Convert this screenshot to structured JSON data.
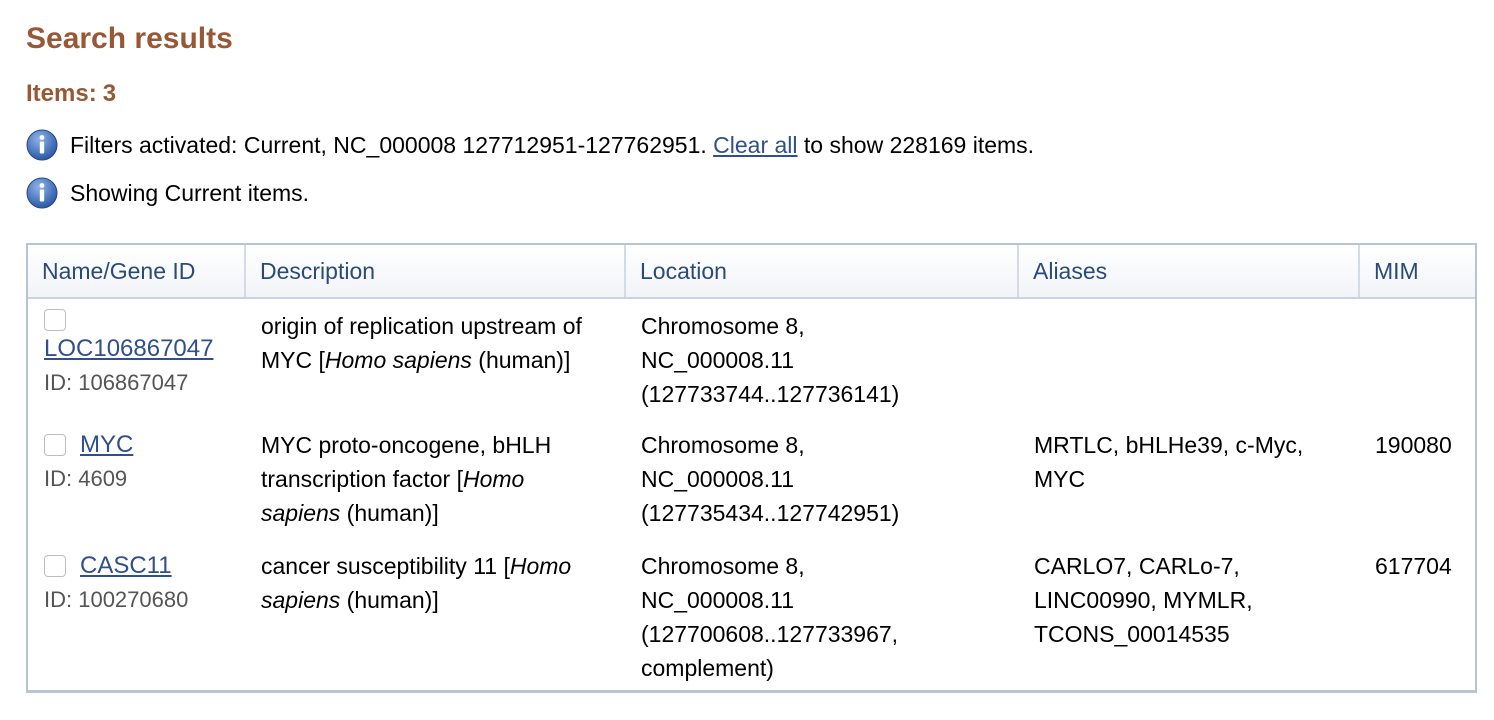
{
  "header": {
    "title": "Search results",
    "items_label": "Items:",
    "items_count": "3"
  },
  "messages": {
    "filters_prefix": "Filters activated: Current, NC_000008 127712951-127762951.",
    "clear_all_label": "Clear all",
    "filters_suffix": "to show 228169 items.",
    "showing": "Showing Current items."
  },
  "table": {
    "columns": [
      "Name/Gene ID",
      "Description",
      "Location",
      "Aliases",
      "MIM"
    ],
    "rows": [
      {
        "name": "LOC106867047",
        "id": "ID: 106867047",
        "desc_main": "origin of replication upstream of MYC [",
        "desc_species": "Homo sapiens",
        "desc_tail": " (human)]",
        "location": [
          "Chromosome 8,",
          "NC_000008.11",
          "(127733744..127736141)"
        ],
        "aliases": "",
        "mim": ""
      },
      {
        "name": "MYC",
        "id": "ID: 4609",
        "desc_main": "MYC proto-oncogene, bHLH transcription factor [",
        "desc_species": "Homo sapiens",
        "desc_tail": " (human)]",
        "location": [
          "Chromosome 8,",
          "NC_000008.11",
          "(127735434..127742951)"
        ],
        "aliases": "MRTLC, bHLHe39, c-Myc, MYC",
        "mim": "190080"
      },
      {
        "name": "CASC11",
        "id": "ID: 100270680",
        "desc_main": "cancer susceptibility 11 [",
        "desc_species": "Homo sapiens",
        "desc_tail": " (human)]",
        "location": [
          "Chromosome 8,",
          "NC_000008.11",
          "(127700608..127733967,",
          "complement)"
        ],
        "aliases": "CARLO7, CARLo-7, LINC00990, MYMLR, TCONS_00014535",
        "mim": "617704"
      }
    ]
  },
  "icons": {
    "info": "info-icon",
    "checkbox": "checkbox"
  },
  "colors": {
    "heading": "#985735",
    "link": "#2f4f8f",
    "header_text": "#2b4a7a",
    "table_border": "#b8c4d6"
  }
}
